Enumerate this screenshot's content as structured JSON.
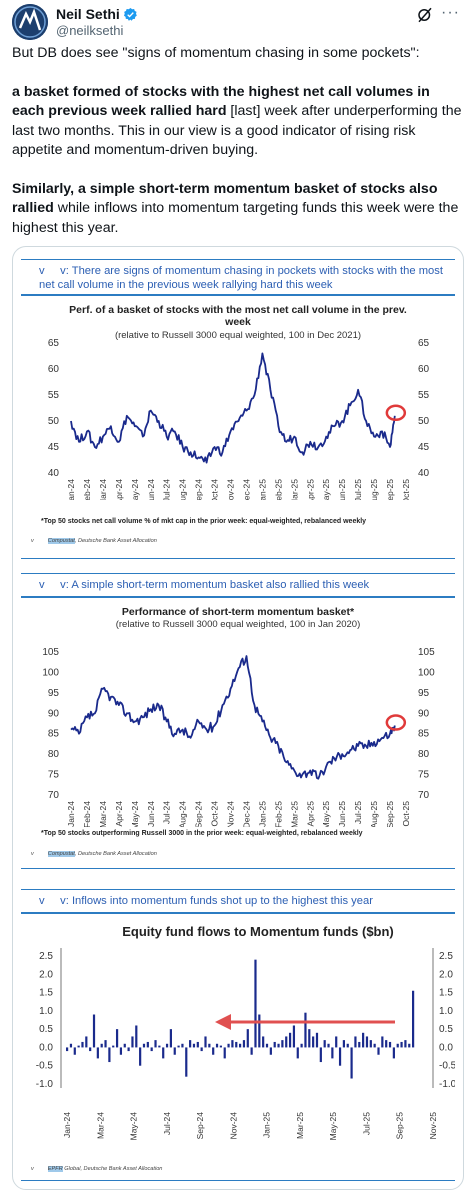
{
  "author": {
    "name": "Neil Sethi",
    "handle": "@neilksethi"
  },
  "tweet": {
    "p1": "But DB does see \"signs of momentum chasing in some pockets\":",
    "p2_bold": "a basket formed of stocks with the highest net call volumes in each previous week rallied hard",
    "p2_rest": " [last] week after underperforming the last two months. This in our  view is a good indicator of rising risk appetite and momentum-driven buying.",
    "p3_bold1": "Similarly, a simple short-term momentum basket of stocks also rallied",
    "p3_rest": " while inflows into momentum targeting funds this week were the highest this year."
  },
  "panels": {
    "p1": {
      "title_prefix": "v",
      "title": "v: There are signs of momentum chasing in pockets with stocks with the most net call volume in the previous week rallying hard this week",
      "chart_title": "Perf. of a basket of stocks with the most net call volume in the prev. week",
      "chart_subtitle": "(relative to Russell 3000 equal weighted, 100 in Dec  2021)",
      "footnote": "*Top 50 stocks net call volume % of mkt cap in the prior week: equal-weighted, rebalanced weekly",
      "source_a": "Compustat",
      "source_b": ", Deutsche Bank Asset Allocation"
    },
    "p2": {
      "title_prefix": "v",
      "title": "v: A simple short-term momentum basket also rallied this week",
      "chart_title": "Performance of short-term momentum basket*",
      "chart_subtitle": "(relative to Russell 3000 equal weighted, 100 in Jan 2020)",
      "footnote": "*Top 50 stocks outperforming Russell 3000 in the prior week: equal-weighted, rebalanced weekly",
      "source_a": "Compustat",
      "source_b": ", Deutsche Bank Asset Allocation"
    },
    "p3": {
      "title_prefix": "v",
      "title": "v: Inflows into momentum funds shot up to the highest this year",
      "chart_title": "Equity fund flows to Momentum funds ($bn)",
      "source_a": "EPFR",
      "source_b": " Global, Deutsche Bank Asset Allocation"
    }
  },
  "colors": {
    "line": "#1a2a8c",
    "circle": "#e03a3a",
    "arrow": "#e05050",
    "accent": "#2c7cc2"
  },
  "chart_data": [
    {
      "type": "line",
      "title": "Perf. of a basket of stocks with the most net call volume in the prev. week",
      "subtitle": "(relative to Russell 3000 equal weighted, 100 in Dec  2021)",
      "ylim": [
        40,
        65
      ],
      "yticks": [
        "40",
        "45",
        "50",
        "55",
        "60",
        "65"
      ],
      "xticks": [
        "Jan-24",
        "Feb-24",
        "Mar-24",
        "Apr-24",
        "May-24",
        "Jun-24",
        "Jul-24",
        "Aug-24",
        "Sep-24",
        "Oct-24",
        "Nov-24",
        "Dec-24",
        "Jan-25",
        "Feb-25",
        "Mar-25",
        "Apr-25",
        "May-25",
        "Jun-25",
        "Jul-25",
        "Aug-25",
        "Sep-25",
        "Oct-25"
      ],
      "x_month_index": [
        0,
        0.5,
        1,
        1.5,
        2,
        2.5,
        3,
        3.5,
        4,
        4.5,
        5,
        5.5,
        6,
        6.5,
        7,
        7.5,
        8,
        8.5,
        9,
        9.5,
        10,
        10.5,
        11,
        11.5,
        12,
        12.5,
        13,
        13.5,
        14,
        14.5,
        15,
        15.5,
        16,
        16.5,
        17,
        17.5,
        18,
        18.5,
        19,
        19.5,
        20,
        20.3
      ],
      "values": [
        50,
        46,
        48,
        45,
        47,
        49,
        46,
        51,
        49,
        47,
        52,
        50,
        47,
        48,
        45,
        44,
        43,
        42,
        45,
        44,
        48,
        50,
        52,
        55,
        63,
        56,
        49,
        46,
        47,
        44,
        46,
        45,
        47,
        49,
        50,
        53,
        56,
        50,
        47,
        48,
        45,
        51
      ],
      "annotation": "circle at latest value"
    },
    {
      "type": "line",
      "title": "Performance of short-term momentum basket*",
      "subtitle": "(relative to Russell 3000 equal weighted, 100 in Jan 2020)",
      "ylim": [
        70,
        105
      ],
      "yticks": [
        "70",
        "75",
        "80",
        "85",
        "90",
        "95",
        "100",
        "105"
      ],
      "xticks": [
        "Jan-24",
        "Feb-24",
        "Mar-24",
        "Apr-24",
        "May-24",
        "Jun-24",
        "Jul-24",
        "Aug-24",
        "Sep-24",
        "Oct-24",
        "Nov-24",
        "Dec-24",
        "Jan-25",
        "Feb-25",
        "Mar-25",
        "Apr-25",
        "May-25",
        "Jun-25",
        "Jul-25",
        "Aug-25",
        "Sep-25",
        "Oct-25"
      ],
      "x_month_index": [
        0,
        0.5,
        1,
        1.5,
        2,
        2.5,
        3,
        3.5,
        4,
        4.5,
        5,
        5.5,
        6,
        6.5,
        7,
        7.5,
        8,
        8.5,
        9,
        9.5,
        10,
        10.5,
        11,
        11.5,
        12,
        12.5,
        13,
        13.5,
        14,
        14.5,
        15,
        15.5,
        16,
        16.5,
        17,
        17.5,
        18,
        18.5,
        19,
        19.5,
        20,
        20.3
      ],
      "values": [
        86,
        85,
        89,
        90,
        96,
        94,
        92,
        90,
        88,
        89,
        91,
        92,
        88,
        85,
        86,
        84,
        88,
        86,
        87,
        92,
        96,
        101,
        104,
        92,
        88,
        84,
        82,
        78,
        76,
        75,
        76,
        74,
        77,
        79,
        80,
        81,
        82,
        82,
        83,
        84,
        85,
        87
      ],
      "annotation": "circle at latest value"
    },
    {
      "type": "bar",
      "title": "Equity fund flows to Momentum funds ($bn)",
      "ylim": [
        -1.0,
        2.5
      ],
      "yticks": [
        "-1.0",
        "-0.5",
        "0.0",
        "0.5",
        "1.0",
        "1.5",
        "2.0",
        "2.5"
      ],
      "xticks": [
        "Jan-24",
        "Mar-24",
        "May-24",
        "Jul-24",
        "Sep-24",
        "Nov-24",
        "Jan-25",
        "Mar-25",
        "May-25",
        "Jul-25",
        "Sep-25",
        "Nov-25"
      ],
      "x_month_index": [
        0,
        1,
        2,
        3,
        4,
        5,
        6,
        7,
        8,
        9,
        10,
        11,
        12,
        13,
        14,
        15,
        16,
        17,
        18,
        19,
        20,
        21,
        22,
        23,
        24,
        25,
        26,
        27,
        28,
        29,
        30,
        31,
        32,
        33,
        34,
        35,
        36,
        37,
        38,
        39,
        40,
        41,
        42,
        43,
        44,
        45,
        46,
        47,
        48,
        49,
        50,
        51,
        52,
        53,
        54,
        55,
        56,
        57,
        58,
        59,
        60,
        61,
        62,
        63,
        64,
        65,
        66,
        67,
        68,
        69,
        70,
        71,
        72,
        73,
        74,
        75,
        76,
        77,
        78,
        79,
        80,
        81,
        82,
        83,
        84,
        85,
        86,
        87,
        88,
        89,
        90
      ],
      "values": [
        -0.1,
        0.1,
        -0.2,
        0.05,
        0.15,
        0.3,
        -0.1,
        0.9,
        -0.3,
        0.1,
        0.2,
        -0.4,
        0.05,
        0.5,
        -0.2,
        0.1,
        -0.1,
        0.3,
        0.6,
        -0.5,
        0.1,
        0.15,
        -0.1,
        0.2,
        0.05,
        -0.3,
        0.1,
        0.5,
        -0.2,
        0.05,
        0.1,
        -0.8,
        0.2,
        0.1,
        0.15,
        -0.1,
        0.3,
        0.1,
        -0.2,
        0.1,
        0.05,
        -0.3,
        0.1,
        0.2,
        0.15,
        0.1,
        0.2,
        0.5,
        -0.2,
        2.4,
        0.9,
        0.3,
        0.1,
        -0.2,
        0.15,
        0.1,
        0.2,
        0.3,
        0.4,
        0.6,
        -0.3,
        0.1,
        0.95,
        0.5,
        0.3,
        0.4,
        -0.4,
        0.2,
        0.1,
        -0.3,
        0.3,
        -0.5,
        0.2,
        0.1,
        -0.85,
        0.3,
        0.15,
        0.4,
        0.3,
        0.2,
        0.1,
        -0.2,
        0.3,
        0.2,
        0.15,
        -0.3,
        0.1,
        0.15,
        0.2,
        0.1,
        1.55
      ]
    }
  ]
}
